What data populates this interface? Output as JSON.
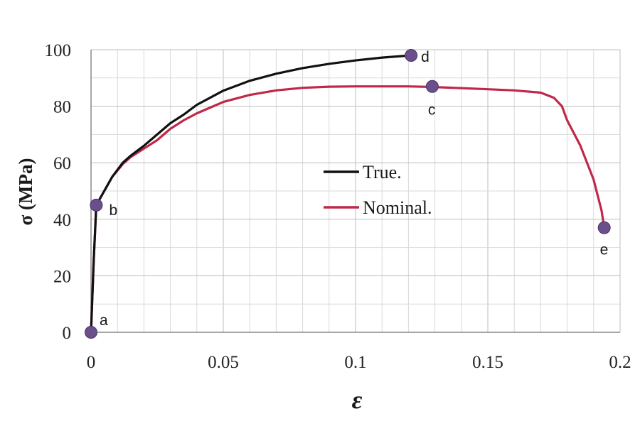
{
  "chart_data": {
    "type": "line",
    "title": "",
    "xlabel": "ε",
    "ylabel": "σ (MPa)",
    "xlim": [
      0,
      0.2
    ],
    "ylim": [
      0,
      100
    ],
    "x_ticks": [
      0,
      0.05,
      0.1,
      0.15,
      0.2
    ],
    "x_tick_labels": [
      "0",
      "0.05",
      "0.1",
      "0.15",
      "0.2"
    ],
    "y_ticks": [
      0,
      20,
      40,
      60,
      80,
      100
    ],
    "y_tick_labels": [
      "0",
      "20",
      "40",
      "60",
      "80",
      "100"
    ],
    "grid": true,
    "legend_placement": "center",
    "series": [
      {
        "name": "True.",
        "color": "#111111",
        "x": [
          0,
          0.001,
          0.002,
          0.005,
          0.008,
          0.012,
          0.015,
          0.02,
          0.025,
          0.03,
          0.035,
          0.04,
          0.045,
          0.05,
          0.06,
          0.07,
          0.08,
          0.09,
          0.1,
          0.11,
          0.121
        ],
        "y": [
          0,
          25,
          45,
          50,
          55,
          60,
          62.5,
          66,
          70,
          74,
          77,
          80.5,
          83,
          85.5,
          89,
          91.5,
          93.5,
          95,
          96.2,
          97.2,
          98
        ]
      },
      {
        "name": "Nominal.",
        "color": "#c0284a",
        "x": [
          0,
          0.001,
          0.002,
          0.005,
          0.008,
          0.012,
          0.015,
          0.02,
          0.025,
          0.03,
          0.035,
          0.04,
          0.045,
          0.05,
          0.06,
          0.07,
          0.08,
          0.09,
          0.1,
          0.11,
          0.12,
          0.129,
          0.14,
          0.15,
          0.16,
          0.17,
          0.175,
          0.178,
          0.18,
          0.185,
          0.19,
          0.193,
          0.194
        ],
        "y": [
          0,
          25,
          45,
          50,
          55,
          59.5,
          62,
          65,
          68,
          72,
          75,
          77.5,
          79.5,
          81.5,
          84,
          85.6,
          86.5,
          86.9,
          87,
          87,
          87,
          86.8,
          86.4,
          86,
          85.6,
          84.8,
          83,
          80,
          75,
          66,
          54,
          43,
          37
        ]
      }
    ],
    "points": [
      {
        "label": "a",
        "x": 0,
        "y": 0
      },
      {
        "label": "b",
        "x": 0.002,
        "y": 45
      },
      {
        "label": "c",
        "x": 0.129,
        "y": 87
      },
      {
        "label": "d",
        "x": 0.121,
        "y": 98
      },
      {
        "label": "e",
        "x": 0.194,
        "y": 37
      }
    ],
    "point_color": "#6a4f8c"
  }
}
